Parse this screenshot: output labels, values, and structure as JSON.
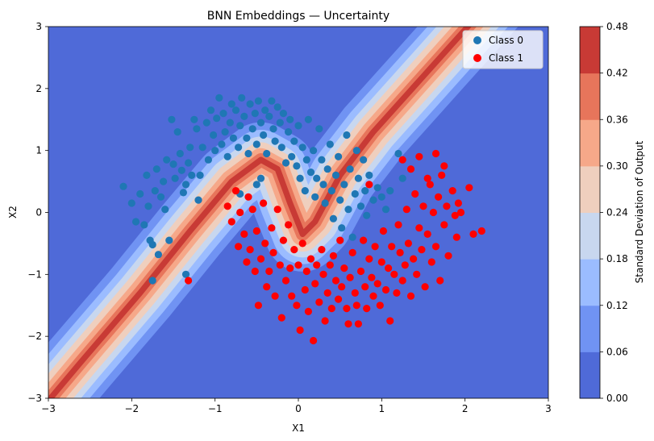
{
  "chart_data": {
    "type": "scatter",
    "title": "BNN Embeddings — Uncertainty",
    "xlabel": "X1",
    "ylabel": "X2",
    "xlim": [
      -3,
      3
    ],
    "ylim": [
      -3,
      3
    ],
    "xticks": [
      "−3",
      "−2",
      "−1",
      "0",
      "1",
      "2",
      "3"
    ],
    "xtick_values": [
      -3,
      -2,
      -1,
      0,
      1,
      2,
      3
    ],
    "yticks": [
      "−3",
      "−2",
      "−1",
      "0",
      "1",
      "2",
      "3"
    ],
    "ytick_values": [
      -3,
      -2,
      -1,
      0,
      1,
      2,
      3
    ],
    "grid": false,
    "legend_position": "top-right",
    "background": {
      "type": "filled-contour",
      "quantity": "Standard deviation of output",
      "levels": [
        0.0,
        0.06,
        0.12,
        0.18,
        0.24,
        0.3,
        0.36,
        0.42,
        0.48
      ],
      "colors": [
        "#4f6ad8",
        "#7093f3",
        "#9bbcff",
        "#c8d7ef",
        "#efcfbe",
        "#f6a889",
        "#e7755b",
        "#c83a35"
      ],
      "shape": "high-uncertainty band along the boundary between the two moons, running from the lower-left corner through the origin to the upper-right corner"
    },
    "colorbar": {
      "label": "Standard Deviation of Output",
      "ticks": [
        "0.00",
        "0.06",
        "0.12",
        "0.18",
        "0.24",
        "0.30",
        "0.36",
        "0.42",
        "0.48"
      ],
      "tick_values": [
        0.0,
        0.06,
        0.12,
        0.18,
        0.24,
        0.3,
        0.36,
        0.42,
        0.48
      ]
    },
    "series": [
      {
        "name": "Class 0",
        "color": "#1f77b4",
        "points": [
          [
            -2.1,
            0.42
          ],
          [
            -2.0,
            0.15
          ],
          [
            -1.95,
            -0.15
          ],
          [
            -1.9,
            0.3
          ],
          [
            -1.85,
            -0.2
          ],
          [
            -1.82,
            0.6
          ],
          [
            -1.8,
            0.1
          ],
          [
            -1.78,
            -0.45
          ],
          [
            -1.75,
            -0.52
          ],
          [
            -1.72,
            0.35
          ],
          [
            -1.7,
            0.7
          ],
          [
            -1.68,
            -0.68
          ],
          [
            -1.65,
            0.25
          ],
          [
            -1.62,
            0.5
          ],
          [
            -1.6,
            0.05
          ],
          [
            -1.58,
            0.85
          ],
          [
            -1.55,
            -0.45
          ],
          [
            -1.52,
            1.5
          ],
          [
            -1.5,
            0.78
          ],
          [
            -1.48,
            0.55
          ],
          [
            -1.45,
            1.3
          ],
          [
            -1.42,
            0.95
          ],
          [
            -1.4,
            0.68
          ],
          [
            -1.38,
            0.32
          ],
          [
            -1.35,
            0.45
          ],
          [
            -1.32,
            0.8
          ],
          [
            -1.3,
            1.05
          ],
          [
            -1.28,
            0.6
          ],
          [
            -1.25,
            1.5
          ],
          [
            -1.22,
            1.35
          ],
          [
            -1.2,
            0.2
          ],
          [
            -1.18,
            0.6
          ],
          [
            -1.15,
            1.05
          ],
          [
            -1.1,
            1.45
          ],
          [
            -1.08,
            0.85
          ],
          [
            -1.05,
            1.65
          ],
          [
            -1.02,
            1.25
          ],
          [
            -1.0,
            1.0
          ],
          [
            -0.98,
            1.52
          ],
          [
            -0.95,
            1.85
          ],
          [
            -0.92,
            1.1
          ],
          [
            -0.9,
            1.6
          ],
          [
            -0.88,
            1.3
          ],
          [
            -0.85,
            0.9
          ],
          [
            -0.82,
            1.45
          ],
          [
            -0.8,
            1.75
          ],
          [
            -0.78,
            1.2
          ],
          [
            -0.75,
            1.65
          ],
          [
            -0.72,
            1.05
          ],
          [
            -0.7,
            1.4
          ],
          [
            -0.68,
            1.85
          ],
          [
            -0.65,
            1.55
          ],
          [
            -0.62,
            1.2
          ],
          [
            -0.6,
            0.95
          ],
          [
            -0.58,
            1.75
          ],
          [
            -0.55,
            1.35
          ],
          [
            -0.52,
            1.6
          ],
          [
            -0.5,
            1.1
          ],
          [
            -0.48,
            1.8
          ],
          [
            -0.45,
            1.45
          ],
          [
            -0.42,
            1.25
          ],
          [
            -0.4,
            1.65
          ],
          [
            -0.38,
            0.95
          ],
          [
            -0.35,
            1.55
          ],
          [
            -0.32,
            1.8
          ],
          [
            -0.3,
            1.35
          ],
          [
            -0.28,
            1.15
          ],
          [
            -0.25,
            1.7
          ],
          [
            -0.22,
            1.45
          ],
          [
            -0.2,
            1.05
          ],
          [
            -0.18,
            1.6
          ],
          [
            -0.15,
            0.8
          ],
          [
            -0.12,
            1.3
          ],
          [
            -0.1,
            1.5
          ],
          [
            -0.08,
            0.9
          ],
          [
            -0.05,
            1.15
          ],
          [
            -0.02,
            0.75
          ],
          [
            0.0,
            1.4
          ],
          [
            0.02,
            0.55
          ],
          [
            0.05,
            1.05
          ],
          [
            0.08,
            0.35
          ],
          [
            0.1,
            0.85
          ],
          [
            0.12,
            1.5
          ],
          [
            0.15,
            0.65
          ],
          [
            0.18,
            1.0
          ],
          [
            0.2,
            0.25
          ],
          [
            0.22,
            0.55
          ],
          [
            0.25,
            1.35
          ],
          [
            0.28,
            0.85
          ],
          [
            0.3,
            0.45
          ],
          [
            0.32,
            0.15
          ],
          [
            0.35,
            0.7
          ],
          [
            0.38,
            1.1
          ],
          [
            0.4,
            0.35
          ],
          [
            0.42,
            -0.1
          ],
          [
            0.45,
            0.6
          ],
          [
            0.48,
            0.9
          ],
          [
            0.5,
            0.2
          ],
          [
            0.52,
            -0.25
          ],
          [
            0.55,
            0.45
          ],
          [
            0.58,
            1.25
          ],
          [
            0.6,
            0.05
          ],
          [
            0.62,
            0.7
          ],
          [
            0.65,
            -0.4
          ],
          [
            0.68,
            0.3
          ],
          [
            0.7,
            1.0
          ],
          [
            0.72,
            0.55
          ],
          [
            0.75,
            0.1
          ],
          [
            0.78,
            0.85
          ],
          [
            0.8,
            0.35
          ],
          [
            0.82,
            -0.05
          ],
          [
            0.85,
            0.6
          ],
          [
            0.9,
            0.2
          ],
          [
            0.95,
            0.4
          ],
          [
            1.0,
            0.25
          ],
          [
            1.05,
            0.05
          ],
          [
            1.1,
            0.35
          ],
          [
            1.2,
            0.95
          ],
          [
            1.25,
            0.55
          ],
          [
            -0.7,
            0.3
          ],
          [
            -0.45,
            0.55
          ],
          [
            -1.75,
            -1.1
          ],
          [
            -1.35,
            -1.0
          ],
          [
            -0.5,
            0.45
          ]
        ]
      },
      {
        "name": "Class 1",
        "color": "#ff0000",
        "points": [
          [
            -1.32,
            -1.1
          ],
          [
            -0.85,
            0.1
          ],
          [
            -0.8,
            -0.15
          ],
          [
            -0.75,
            0.35
          ],
          [
            -0.72,
            -0.55
          ],
          [
            -0.7,
            0.0
          ],
          [
            -0.65,
            -0.35
          ],
          [
            -0.62,
            -0.8
          ],
          [
            -0.6,
            0.25
          ],
          [
            -0.58,
            -0.6
          ],
          [
            -0.55,
            0.05
          ],
          [
            -0.52,
            -0.95
          ],
          [
            -0.5,
            -0.3
          ],
          [
            -0.48,
            -1.5
          ],
          [
            -0.45,
            -0.75
          ],
          [
            -0.42,
            0.15
          ],
          [
            -0.4,
            -0.5
          ],
          [
            -0.38,
            -1.2
          ],
          [
            -0.35,
            -0.95
          ],
          [
            -0.32,
            -0.25
          ],
          [
            -0.3,
            -0.65
          ],
          [
            -0.28,
            -1.35
          ],
          [
            -0.25,
            0.05
          ],
          [
            -0.22,
            -0.85
          ],
          [
            -0.2,
            -1.7
          ],
          [
            -0.18,
            -0.45
          ],
          [
            -0.15,
            -1.1
          ],
          [
            -0.12,
            -0.2
          ],
          [
            -0.1,
            -0.9
          ],
          [
            -0.08,
            -1.35
          ],
          [
            -0.05,
            -0.6
          ],
          [
            -0.02,
            -1.5
          ],
          [
            0.0,
            -0.85
          ],
          [
            0.02,
            -1.9
          ],
          [
            0.05,
            -0.5
          ],
          [
            0.08,
            -1.25
          ],
          [
            0.1,
            -0.95
          ],
          [
            0.12,
            -1.6
          ],
          [
            0.15,
            -0.75
          ],
          [
            0.18,
            -2.07
          ],
          [
            0.2,
            -1.15
          ],
          [
            0.22,
            -0.85
          ],
          [
            0.25,
            -1.45
          ],
          [
            0.28,
            -0.6
          ],
          [
            0.3,
            -1.0
          ],
          [
            0.32,
            -1.75
          ],
          [
            0.35,
            -1.3
          ],
          [
            0.38,
            -0.85
          ],
          [
            0.4,
            -1.55
          ],
          [
            0.42,
            -0.7
          ],
          [
            0.45,
            -1.1
          ],
          [
            0.48,
            -1.4
          ],
          [
            0.5,
            -0.45
          ],
          [
            0.52,
            -1.2
          ],
          [
            0.55,
            -0.9
          ],
          [
            0.58,
            -1.55
          ],
          [
            0.6,
            -1.8
          ],
          [
            0.62,
            -1.05
          ],
          [
            0.65,
            -0.65
          ],
          [
            0.68,
            -1.3
          ],
          [
            0.7,
            -1.5
          ],
          [
            0.72,
            -1.8
          ],
          [
            0.75,
            -0.95
          ],
          [
            0.78,
            -0.45
          ],
          [
            0.8,
            -1.2
          ],
          [
            0.82,
            -1.55
          ],
          [
            0.85,
            -0.75
          ],
          [
            0.88,
            -1.05
          ],
          [
            0.9,
            -1.35
          ],
          [
            0.92,
            -0.55
          ],
          [
            0.95,
            -1.15
          ],
          [
            0.98,
            -1.5
          ],
          [
            1.0,
            -0.8
          ],
          [
            1.02,
            -0.3
          ],
          [
            1.05,
            -1.25
          ],
          [
            1.08,
            -0.9
          ],
          [
            1.1,
            -1.75
          ],
          [
            1.12,
            -0.55
          ],
          [
            1.15,
            -1.0
          ],
          [
            1.18,
            -1.3
          ],
          [
            1.2,
            -0.2
          ],
          [
            1.22,
            -0.65
          ],
          [
            1.25,
            -1.1
          ],
          [
            1.28,
            -0.85
          ],
          [
            1.3,
            0.05
          ],
          [
            1.32,
            -0.5
          ],
          [
            1.35,
            -1.35
          ],
          [
            1.38,
            -0.75
          ],
          [
            1.4,
            0.3
          ],
          [
            1.42,
            -1.0
          ],
          [
            1.45,
            -0.25
          ],
          [
            1.48,
            -0.6
          ],
          [
            1.5,
            0.1
          ],
          [
            1.52,
            -1.2
          ],
          [
            1.55,
            -0.35
          ],
          [
            1.58,
            0.45
          ],
          [
            1.6,
            -0.8
          ],
          [
            1.62,
            0.0
          ],
          [
            1.65,
            -0.55
          ],
          [
            1.68,
            0.25
          ],
          [
            1.7,
            -1.1
          ],
          [
            1.72,
            0.6
          ],
          [
            1.75,
            -0.2
          ],
          [
            1.78,
            0.1
          ],
          [
            1.8,
            -0.7
          ],
          [
            1.85,
            0.35
          ],
          [
            1.88,
            -0.05
          ],
          [
            1.92,
            0.15
          ],
          [
            1.95,
            0.0
          ],
          [
            2.05,
            0.4
          ],
          [
            2.1,
            -0.35
          ],
          [
            2.2,
            -0.3
          ],
          [
            1.25,
            0.85
          ],
          [
            1.35,
            0.7
          ],
          [
            1.45,
            0.9
          ],
          [
            1.55,
            0.55
          ],
          [
            1.65,
            0.95
          ],
          [
            1.75,
            0.75
          ],
          [
            0.85,
            0.45
          ],
          [
            1.9,
            -0.4
          ]
        ]
      }
    ]
  }
}
